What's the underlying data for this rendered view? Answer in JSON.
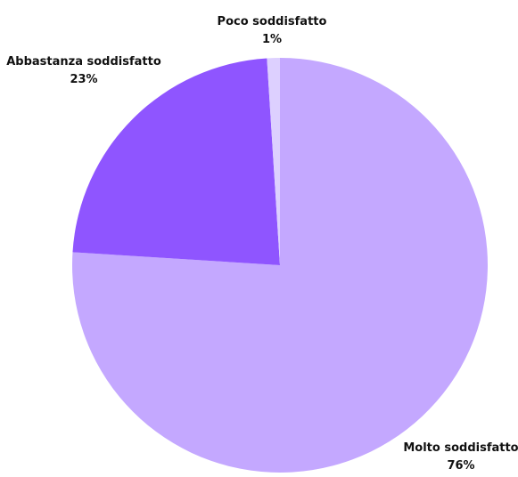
{
  "chart_data": {
    "type": "pie",
    "title": "",
    "slices": [
      {
        "label": "Molto soddisfatto",
        "value": 76,
        "value_label": "76%",
        "color": "#c4a8ff"
      },
      {
        "label": "Poco soddisfatto",
        "value": 1,
        "value_label": "1%",
        "color": "#ddd0ff"
      },
      {
        "label": "Abbastanza soddisfatto",
        "value": 23,
        "value_label": "23%",
        "color": "#8f55ff"
      }
    ],
    "start": "12 o'clock",
    "direction": "counterclockwise",
    "legend": "none",
    "labels": "outside each slice"
  }
}
